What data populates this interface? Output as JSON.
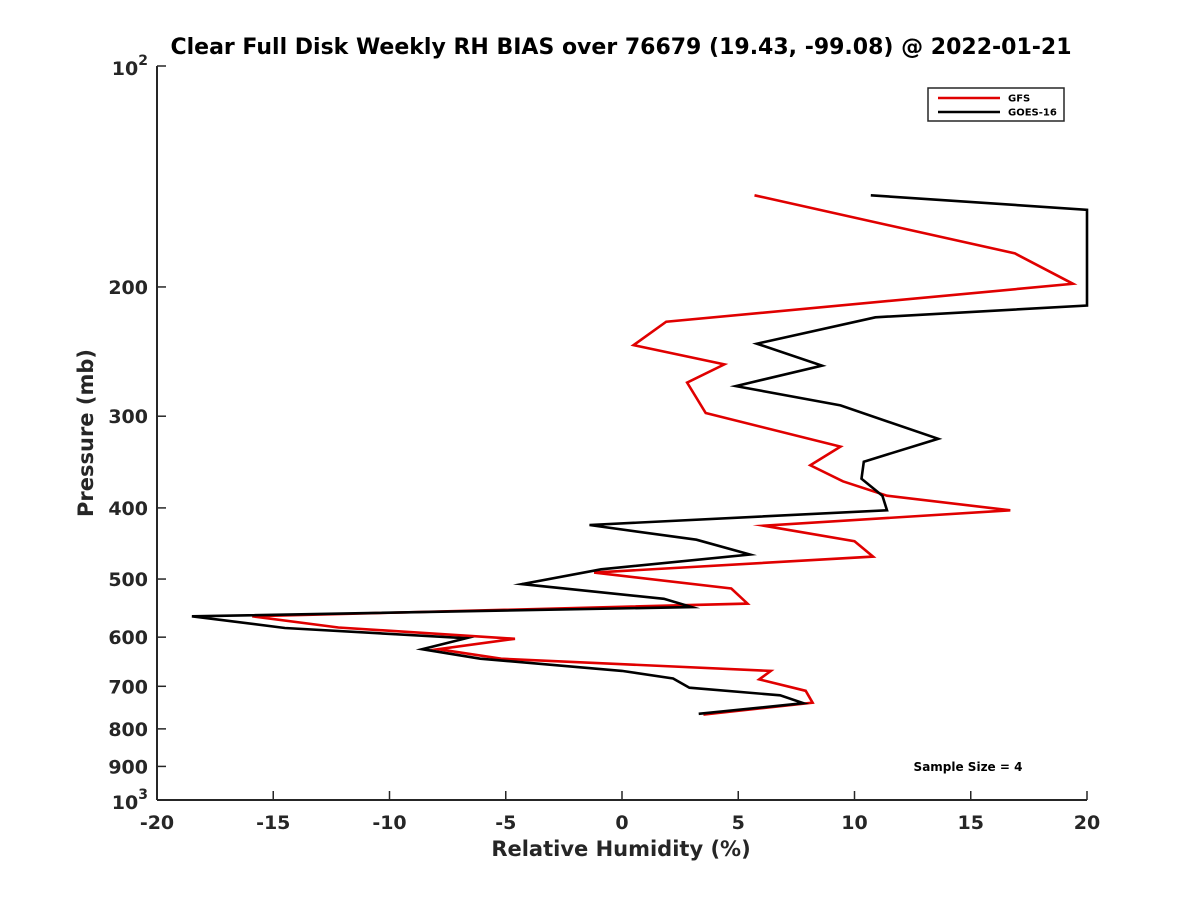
{
  "chart_data": {
    "type": "line",
    "title": "Clear Full Disk Weekly RH BIAS over 76679 (19.43, -99.08) @ 2022-01-21",
    "xlabel": "Relative Humidity (%)",
    "ylabel": "Pressure (mb)",
    "xlim": [
      -20,
      20
    ],
    "ylim": [
      100,
      1000
    ],
    "y_scale": "log",
    "y_reversed": true,
    "grid": false,
    "legend_position": "top-right",
    "x_ticks": [
      -20,
      -15,
      -10,
      -5,
      0,
      5,
      10,
      15,
      20
    ],
    "x_tick_labels": [
      "-20",
      "-15",
      "-10",
      "-5",
      "0",
      "5",
      "10",
      "15",
      "20"
    ],
    "y_ticks": [
      {
        "value": 100,
        "base": "10",
        "exp": "2"
      },
      {
        "value": 200,
        "label": "200"
      },
      {
        "value": 300,
        "label": "300"
      },
      {
        "value": 400,
        "label": "400"
      },
      {
        "value": 500,
        "label": "500"
      },
      {
        "value": 600,
        "label": "600"
      },
      {
        "value": 700,
        "label": "700"
      },
      {
        "value": 800,
        "label": "800"
      },
      {
        "value": 900,
        "label": "900"
      },
      {
        "value": 1000,
        "base": "10",
        "exp": "3"
      }
    ],
    "series": [
      {
        "name": "GFS",
        "color": "#e00000",
        "x": [
          5.7,
          16.9,
          19.4,
          1.9,
          0.5,
          4.4,
          2.8,
          3.6,
          9.4,
          8.1,
          9.5,
          11.4,
          16.7,
          6.1,
          10.0,
          10.8,
          -1.2,
          4.7,
          5.4,
          -15.9,
          -12.2,
          -4.6,
          -7.9,
          -5.2,
          6.4,
          5.9,
          7.9,
          8.2,
          3.5
        ],
        "y": [
          150,
          180,
          198,
          223,
          240,
          255,
          270,
          297,
          330,
          350,
          368,
          385,
          403,
          423,
          444,
          466,
          490,
          515,
          540,
          562,
          582,
          603,
          623,
          642,
          667,
          685,
          710,
          737,
          765
        ]
      },
      {
        "name": "GOES-16",
        "color": "#000000",
        "x": [
          10.7,
          20.0,
          20.0,
          10.9,
          5.8,
          8.6,
          4.9,
          9.4,
          13.6,
          10.4,
          10.3,
          11.2,
          11.4,
          -1.4,
          3.2,
          5.5,
          -0.9,
          -4.3,
          1.8,
          3.0,
          -18.5,
          -14.5,
          -6.7,
          -8.6,
          -6.1,
          0.0,
          2.2,
          2.9,
          6.8,
          7.8,
          3.3
        ],
        "y": [
          150,
          157,
          212,
          220,
          239,
          256,
          273,
          290,
          322,
          346,
          365,
          385,
          403,
          422,
          442,
          463,
          485,
          508,
          532,
          546,
          562,
          583,
          602,
          623,
          642,
          667,
          683,
          703,
          720,
          738,
          763
        ]
      }
    ],
    "annotations": [
      "Sample Size = 4"
    ]
  }
}
